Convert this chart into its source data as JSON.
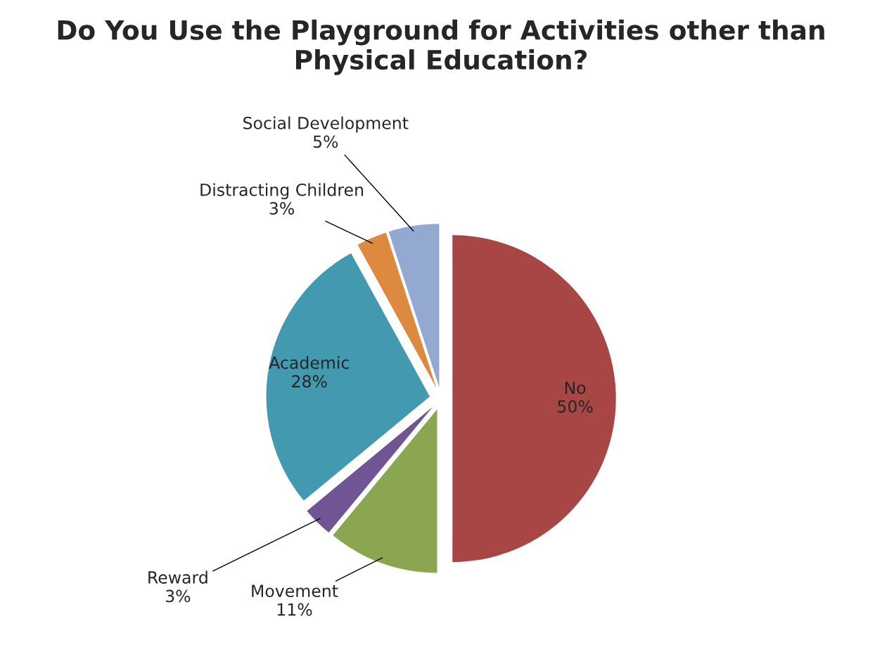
{
  "chart_data": {
    "type": "pie",
    "title": "Do You Use the Playground for Activities other than Physical Education?",
    "categories": [
      "No",
      "Movement",
      "Reward",
      "Academic",
      "Distracting Children",
      "Social Development"
    ],
    "values": [
      50,
      11,
      3,
      28,
      3,
      5
    ],
    "value_labels": [
      "50%",
      "11%",
      "3%",
      "28%",
      "3%",
      "5%"
    ],
    "colors": [
      "#a84545",
      "#8ba650",
      "#6f5594",
      "#4299b0",
      "#dd8a3e",
      "#93a9d1"
    ],
    "legend": false
  }
}
